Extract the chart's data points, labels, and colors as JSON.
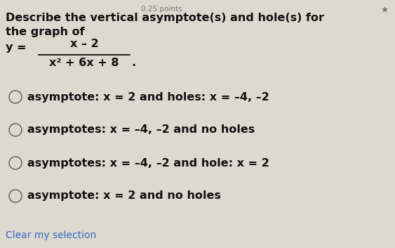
{
  "header_text": "0.25 points",
  "question_line1": "Describe the vertical asymptote(s) and hole(s) for",
  "question_line2": "the graph of",
  "formula_numerator": "x – 2",
  "formula_denominator": "x² + 6x + 8",
  "options": [
    "asymptote: x = 2 and holes: x = –4, –2",
    "asymptotes: x = –4, –2 and no holes",
    "asymptotes: x = –4, –2 and hole: x = 2",
    "asymptote: x = 2 and no holes"
  ],
  "footer_text": "Clear my selection",
  "bg_color": "#ddd9d0",
  "text_color": "#111111",
  "footer_color": "#3a6bc4",
  "header_color": "#777777",
  "radio_color": "#666666",
  "header_fontsize": 7.5,
  "title_fontsize": 11.5,
  "formula_fontsize": 11.5,
  "option_fontsize": 11.5,
  "footer_fontsize": 10
}
